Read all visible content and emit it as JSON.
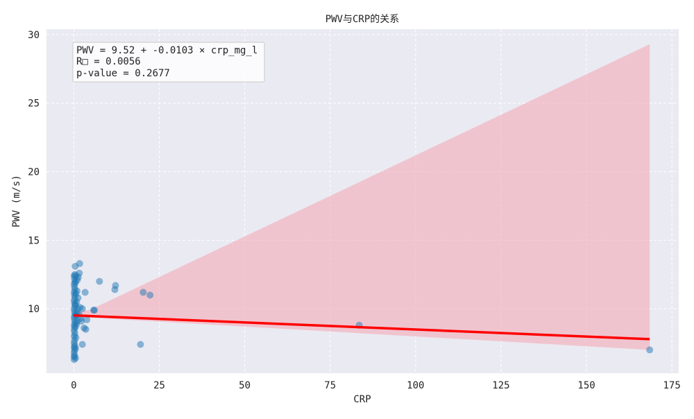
{
  "chart_data": {
    "type": "scatter",
    "title": "PWV与CRP的关系",
    "xlabel": "CRP",
    "ylabel": "PWV (m/s)",
    "xlim": [
      -8,
      177
    ],
    "ylim": [
      5.3,
      30.4
    ],
    "xticks": [
      0,
      25,
      50,
      75,
      100,
      125,
      150,
      175
    ],
    "yticks": [
      10,
      15,
      20,
      25,
      30
    ],
    "grid": true,
    "annotation": [
      "PWV = 9.52 + -0.0103 × crp_mg_l",
      "R□ = 0.0056",
      "p-value = 0.2677"
    ],
    "colors": {
      "points": "#1f77b4",
      "fit_line": "#ff0000",
      "confidence_band": "#f4aab5",
      "background": "#eaeaf2"
    },
    "regression": {
      "intercept": 9.52,
      "slope": -0.0103,
      "x_range": [
        0,
        168.5
      ]
    },
    "confidence_band": {
      "x": [
        0,
        5,
        168.5
      ],
      "lower": [
        9.35,
        9.35,
        7.0
      ],
      "upper": [
        9.7,
        9.95,
        29.3
      ]
    },
    "points": [
      [
        0.1,
        6.3
      ],
      [
        0.1,
        6.5
      ],
      [
        0.2,
        6.6
      ],
      [
        0.1,
        6.8
      ],
      [
        0.2,
        7.0
      ],
      [
        0.1,
        7.2
      ],
      [
        0.3,
        7.3
      ],
      [
        0.1,
        7.5
      ],
      [
        0.2,
        7.7
      ],
      [
        0.1,
        8.0
      ],
      [
        0.3,
        8.2
      ],
      [
        0.1,
        8.4
      ],
      [
        0.2,
        8.6
      ],
      [
        0.1,
        8.8
      ],
      [
        0.3,
        9.0
      ],
      [
        0.2,
        9.2
      ],
      [
        0.1,
        9.4
      ],
      [
        0.3,
        9.6
      ],
      [
        0.2,
        9.8
      ],
      [
        0.1,
        10.0
      ],
      [
        0.3,
        10.2
      ],
      [
        0.2,
        10.4
      ],
      [
        0.1,
        10.6
      ],
      [
        0.3,
        10.8
      ],
      [
        0.2,
        11.0
      ],
      [
        0.1,
        11.2
      ],
      [
        0.3,
        11.4
      ],
      [
        0.2,
        11.6
      ],
      [
        0.1,
        11.8
      ],
      [
        0.3,
        12.0
      ],
      [
        0.2,
        12.2
      ],
      [
        0.1,
        12.4
      ],
      [
        0.3,
        12.5
      ],
      [
        0.4,
        13.1
      ],
      [
        0.5,
        6.4
      ],
      [
        0.5,
        7.1
      ],
      [
        0.6,
        7.9
      ],
      [
        0.5,
        8.7
      ],
      [
        0.6,
        9.5
      ],
      [
        0.5,
        10.3
      ],
      [
        0.6,
        11.1
      ],
      [
        0.5,
        11.9
      ],
      [
        0.6,
        12.4
      ],
      [
        0.8,
        8.9
      ],
      [
        0.9,
        9.7
      ],
      [
        0.8,
        10.5
      ],
      [
        0.9,
        11.3
      ],
      [
        1.0,
        12.1
      ],
      [
        1.0,
        9.1
      ],
      [
        1.1,
        10.0
      ],
      [
        1.2,
        10.8
      ],
      [
        1.3,
        12.3
      ],
      [
        1.5,
        9.6
      ],
      [
        1.6,
        12.6
      ],
      [
        1.7,
        13.3
      ],
      [
        1.8,
        10.1
      ],
      [
        2.0,
        9.3
      ],
      [
        2.2,
        9.1
      ],
      [
        2.5,
        10.0
      ],
      [
        2.5,
        7.4
      ],
      [
        3.0,
        8.6
      ],
      [
        3.3,
        11.2
      ],
      [
        3.5,
        8.5
      ],
      [
        3.8,
        9.2
      ],
      [
        5.8,
        9.9
      ],
      [
        6.0,
        9.9
      ],
      [
        7.5,
        12.0
      ],
      [
        12.0,
        11.4
      ],
      [
        12.2,
        11.7
      ],
      [
        19.5,
        7.4
      ],
      [
        20.3,
        11.2
      ],
      [
        22.3,
        11.0
      ],
      [
        83.5,
        8.8
      ],
      [
        168.5,
        7.0
      ]
    ]
  }
}
